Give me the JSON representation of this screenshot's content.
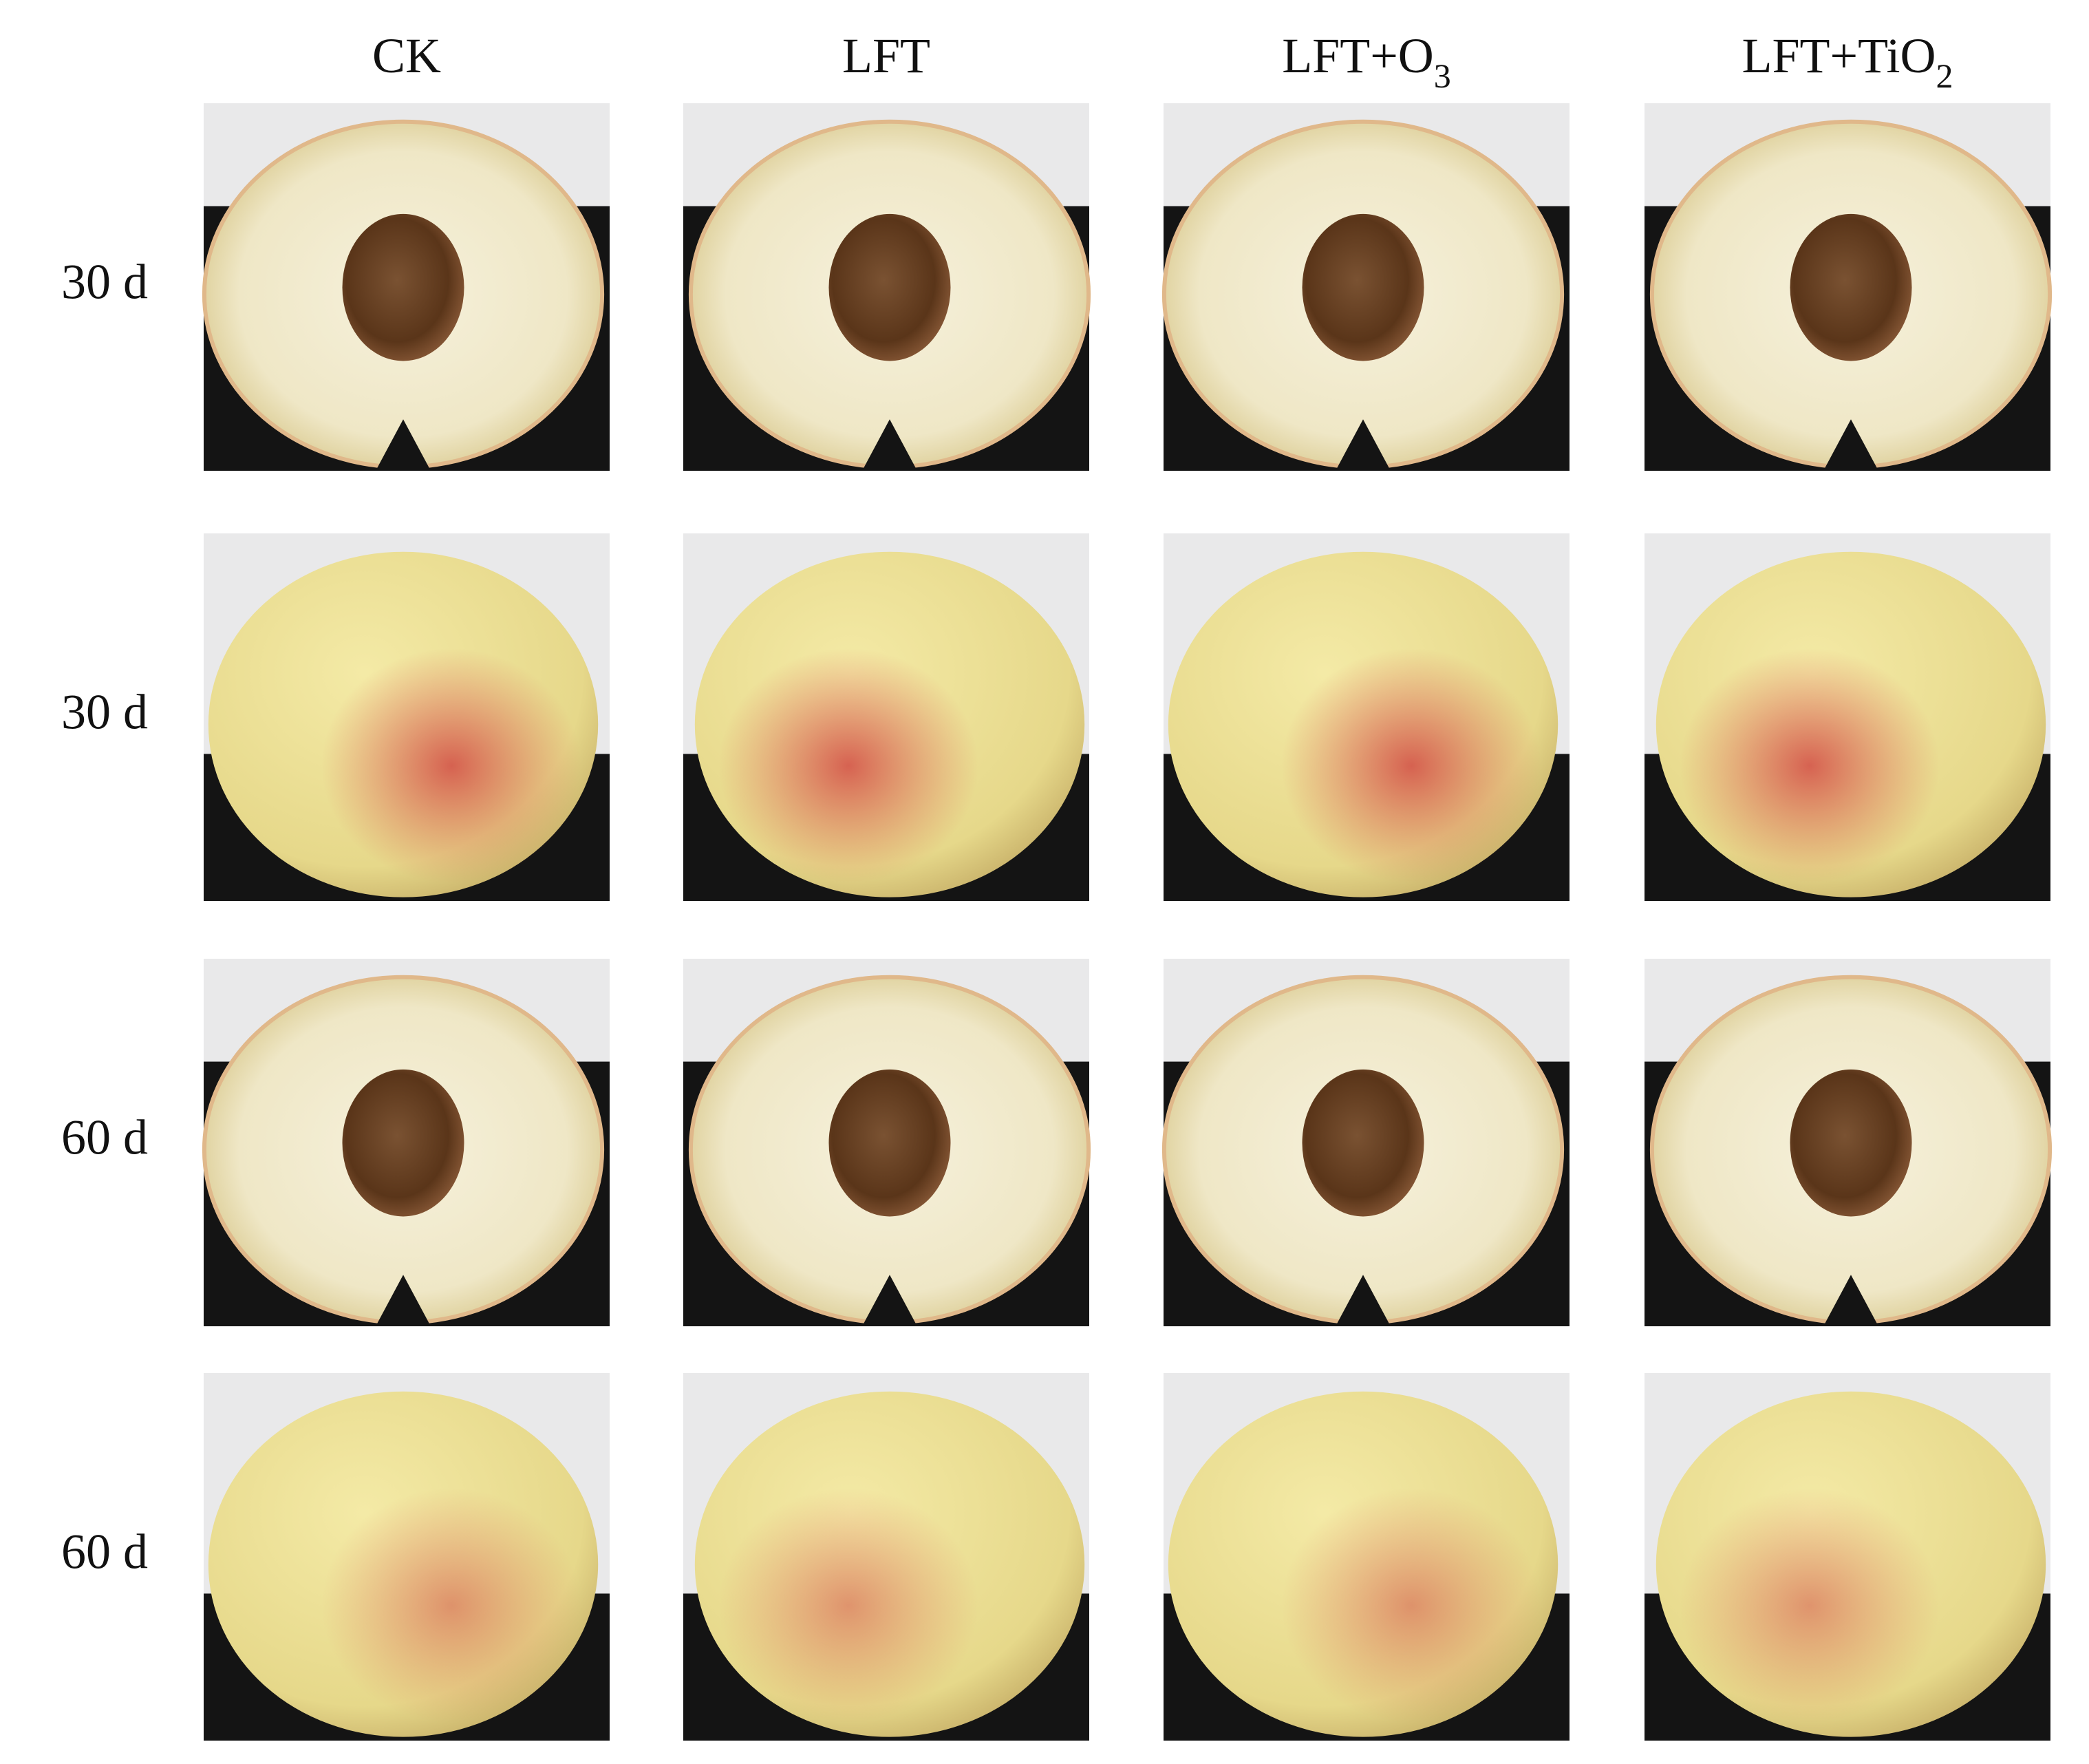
{
  "columns": [
    {
      "text": "CK"
    },
    {
      "text": "LFT"
    },
    {
      "text": "LFT+O",
      "sub": "3"
    },
    {
      "text": "LFT+TiO",
      "sub": "2"
    }
  ],
  "rows": [
    "30 d",
    "30 d",
    "60 d",
    "60 d"
  ]
}
